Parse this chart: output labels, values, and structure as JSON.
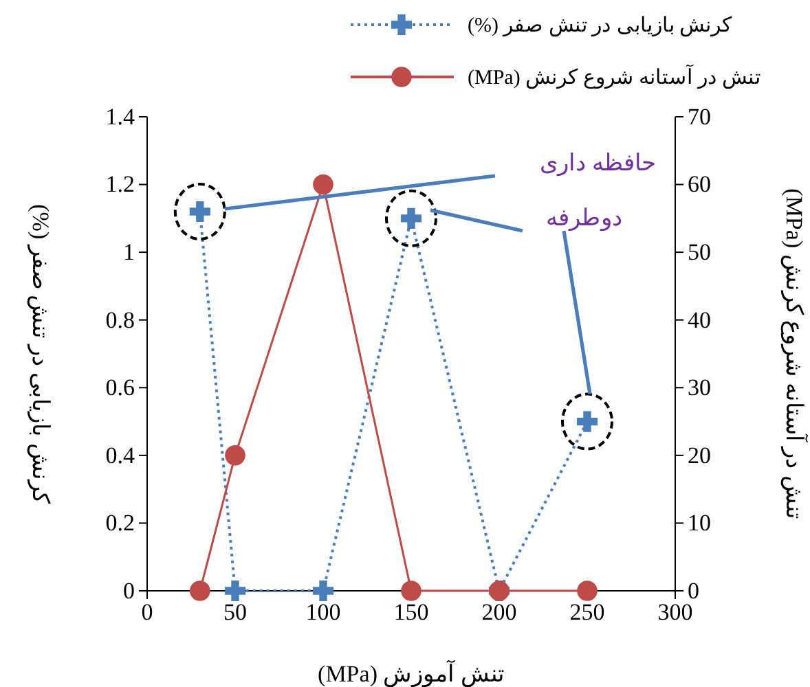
{
  "chart_data": {
    "type": "line",
    "xlabel": "تنش آموزش (MPa)",
    "ylabel": "کرنش بازیابی در تنش صفر (%)",
    "y2label": "تنش در آستانه شروع کرنش (MPa)",
    "x": [
      30,
      50,
      100,
      150,
      200,
      250
    ],
    "series": [
      {
        "name": "کرنش بازیابی در تنش صفر (%)",
        "color": "#4a7ebb",
        "values": [
          1.12,
          0,
          0,
          1.1,
          0,
          0.5
        ],
        "marker": "cross",
        "line_style": "dotted"
      },
      {
        "name": "تنش در آستانه شروع کرنش (MPa)",
        "color": "#be4b48",
        "values": [
          0,
          20,
          60,
          0,
          0,
          0
        ],
        "axis": "y2",
        "marker": "circle",
        "line_style": "solid"
      }
    ],
    "xlim": [
      0,
      300
    ],
    "xticks": [
      0,
      50,
      100,
      150,
      200,
      250,
      300
    ],
    "ylim": [
      0,
      1.4
    ],
    "yticks": [
      0,
      0.2,
      0.4,
      0.6,
      0.8,
      1,
      1.2,
      1.4
    ],
    "y2lim": [
      0,
      70
    ],
    "y2ticks": [
      0,
      10,
      20,
      30,
      40,
      50,
      60,
      70
    ],
    "annotations": [
      "حافظه داری",
      "دوطرفه"
    ],
    "grid": false,
    "legend": "top"
  }
}
